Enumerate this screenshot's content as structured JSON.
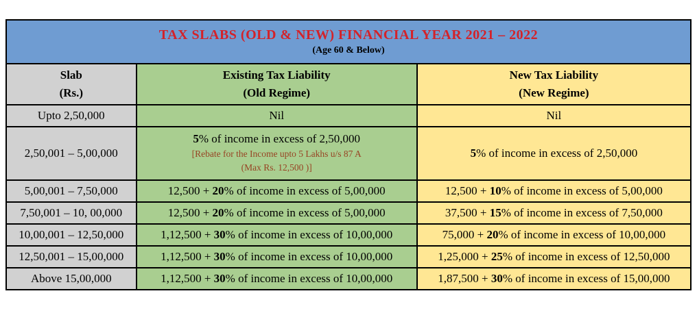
{
  "colors": {
    "banner_blue": "#6f9cd2",
    "title_red": "#d42229",
    "slab_gray": "#d1d1d1",
    "old_green": "#a9ce90",
    "new_yellow": "#ffe794",
    "note_brown": "#974323",
    "border_black": "#000000"
  },
  "banner": {
    "title": "TAX SLABS (OLD & NEW)  FINANCIAL YEAR 2021 – 2022",
    "subtitle": "(Age 60 & Below)"
  },
  "columns": {
    "slab": {
      "line1": "Slab",
      "line2": "(Rs.)"
    },
    "old": {
      "line1": "Existing Tax Liability",
      "line2": "(Old Regime)"
    },
    "new": {
      "line1": "New Tax Liability",
      "line2": "(New Regime)"
    }
  },
  "rows": [
    {
      "slab": "Upto 2,50,000",
      "old": {
        "pre": "Nil",
        "bold": "",
        "post": ""
      },
      "new": {
        "pre": "Nil",
        "bold": "",
        "post": ""
      }
    },
    {
      "slab": "2,50,001 – 5,00,000",
      "old": {
        "pre": "",
        "bold": "5",
        "post": "% of income in excess of 2,50,000",
        "note1": "[Rebate for the Income upto 5 Lakhs u/s 87 A",
        "note2": "(Max Rs. 12,500 )]"
      },
      "new": {
        "pre": "",
        "bold": "5",
        "post": "% of income in excess of 2,50,000"
      }
    },
    {
      "slab": "5,00,001 – 7,50,000",
      "old": {
        "pre": "12,500 + ",
        "bold": "20",
        "post": "% of income in excess of 5,00,000"
      },
      "new": {
        "pre": "12,500 + ",
        "bold": "10",
        "post": "% of income in excess of 5,00,000"
      }
    },
    {
      "slab": "7,50,001 – 10, 00,000",
      "old": {
        "pre": "12,500 + ",
        "bold": "20",
        "post": "% of income in excess of 5,00,000"
      },
      "new": {
        "pre": "37,500 + ",
        "bold": "15",
        "post": "% of income in excess of 7,50,000"
      }
    },
    {
      "slab": "10,00,001 – 12,50,000",
      "old": {
        "pre": "1,12,500 + ",
        "bold": "30",
        "post": "% of income in excess of 10,00,000"
      },
      "new": {
        "pre": "75,000 + ",
        "bold": "20",
        "post": "% of income in excess of 10,00,000"
      }
    },
    {
      "slab": "12,50,001 – 15,00,000",
      "old": {
        "pre": "1,12,500 + ",
        "bold": "30",
        "post": "% of income in excess of 10,00,000"
      },
      "new": {
        "pre": "1,25,000 + ",
        "bold": "25",
        "post": "% of income in excess of 12,50,000"
      }
    },
    {
      "slab": "Above 15,00,000",
      "old": {
        "pre": "1,12,500 + ",
        "bold": "30",
        "post": "% of income in excess of 10,00,000"
      },
      "new": {
        "pre": "1,87,500 + ",
        "bold": "30",
        "post": "% of income in excess of 15,00,000"
      }
    }
  ]
}
